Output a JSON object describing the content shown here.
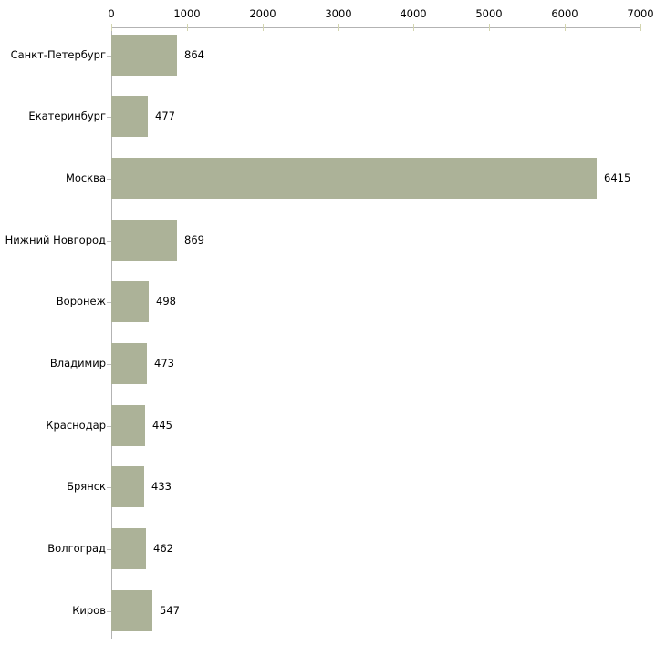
{
  "chart_data": {
    "type": "bar",
    "orientation": "horizontal",
    "title": "",
    "xlabel": "",
    "ylabel": "",
    "categories": [
      "Санкт-Петербург",
      "Екатеринбург",
      "Москва",
      "Нижний Новгород",
      "Воронеж",
      "Владимир",
      "Краснодар",
      "Брянск",
      "Волгоград",
      "Киров"
    ],
    "values": [
      864,
      477,
      6415,
      869,
      498,
      473,
      445,
      433,
      462,
      547
    ],
    "xlim": [
      0,
      7000
    ],
    "x_ticks": [
      0,
      1000,
      2000,
      3000,
      4000,
      5000,
      6000,
      7000
    ],
    "grid": false,
    "legend": false,
    "axis_position": "top",
    "colors": {
      "bar_fill": "#acb298",
      "axis_line": "#b3b3b3",
      "x_tick": "#d3d5af",
      "category_tick": "#bdbdbd",
      "text": "#000000",
      "background": "#ffffff"
    }
  }
}
